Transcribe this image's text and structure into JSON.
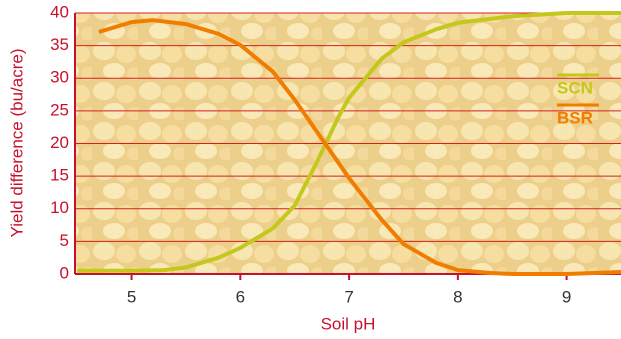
{
  "chart_data": {
    "type": "line",
    "x_label": "Soil pH",
    "y_label": "Yield difference (bu/acre)",
    "xlim": [
      4.48,
      9.5
    ],
    "xticks": [
      5,
      6,
      7,
      8,
      9
    ],
    "ylim": [
      0,
      40
    ],
    "yticks": [
      0,
      5,
      10,
      15,
      20,
      25,
      30,
      35,
      40
    ],
    "grid": true,
    "legend": "right",
    "series": [
      {
        "name": "SCN",
        "color": "#c4c81c",
        "x": [
          4.5,
          5.0,
          5.3,
          5.5,
          5.8,
          6.0,
          6.3,
          6.5,
          6.7,
          6.9,
          7.0,
          7.3,
          7.5,
          7.8,
          8.0,
          8.5,
          9.0,
          9.5
        ],
        "values": [
          0.5,
          0.5,
          0.6,
          1,
          2.5,
          4,
          7,
          10.5,
          17,
          24,
          27,
          33,
          35.5,
          37.5,
          38.5,
          39.5,
          40,
          40
        ]
      },
      {
        "name": "BSR",
        "color": "#f07d00",
        "x": [
          4.7,
          5.0,
          5.2,
          5.5,
          5.8,
          6.0,
          6.3,
          6.5,
          6.8,
          7.0,
          7.3,
          7.5,
          7.8,
          8.0,
          8.3,
          8.5,
          9.0,
          9.5
        ],
        "values": [
          37.1,
          38.6,
          38.9,
          38.3,
          36.8,
          35.1,
          31,
          26.7,
          19.5,
          14.7,
          8.3,
          4.6,
          1.7,
          0.6,
          0.15,
          0,
          0,
          0.3
        ]
      }
    ]
  }
}
